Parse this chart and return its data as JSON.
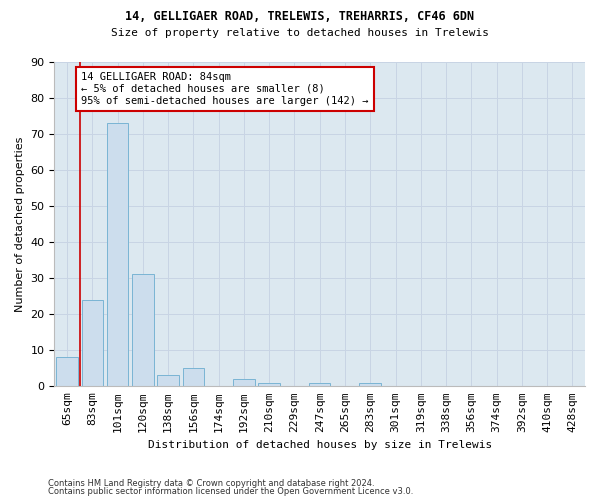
{
  "title1": "14, GELLIGAER ROAD, TRELEWIS, TREHARRIS, CF46 6DN",
  "title2": "Size of property relative to detached houses in Trelewis",
  "xlabel": "Distribution of detached houses by size in Trelewis",
  "ylabel": "Number of detached properties",
  "categories": [
    "65sqm",
    "83sqm",
    "101sqm",
    "120sqm",
    "138sqm",
    "156sqm",
    "174sqm",
    "192sqm",
    "210sqm",
    "229sqm",
    "247sqm",
    "265sqm",
    "283sqm",
    "301sqm",
    "319sqm",
    "338sqm",
    "356sqm",
    "374sqm",
    "392sqm",
    "410sqm",
    "428sqm"
  ],
  "values": [
    8,
    24,
    73,
    31,
    3,
    5,
    0,
    2,
    1,
    0,
    1,
    0,
    1,
    0,
    0,
    0,
    0,
    0,
    0,
    0,
    0
  ],
  "bar_color": "#ccdded",
  "bar_edge_color": "#7ab4d4",
  "grid_color": "#c8d4e4",
  "background_color": "#dce8f0",
  "annotation_text": "14 GELLIGAER ROAD: 84sqm\n← 5% of detached houses are smaller (8)\n95% of semi-detached houses are larger (142) →",
  "annotation_box_color": "#ffffff",
  "annotation_border_color": "#cc0000",
  "property_line_color": "#cc0000",
  "property_line_x": 0.5,
  "ylim": [
    0,
    90
  ],
  "yticks": [
    0,
    10,
    20,
    30,
    40,
    50,
    60,
    70,
    80,
    90
  ],
  "title1_fontsize": 8.5,
  "title2_fontsize": 8.0,
  "xlabel_fontsize": 8.0,
  "ylabel_fontsize": 8.0,
  "tick_fontsize": 8.0,
  "annot_fontsize": 7.5,
  "footer_fontsize": 6.0,
  "footer1": "Contains HM Land Registry data © Crown copyright and database right 2024.",
  "footer2": "Contains public sector information licensed under the Open Government Licence v3.0."
}
